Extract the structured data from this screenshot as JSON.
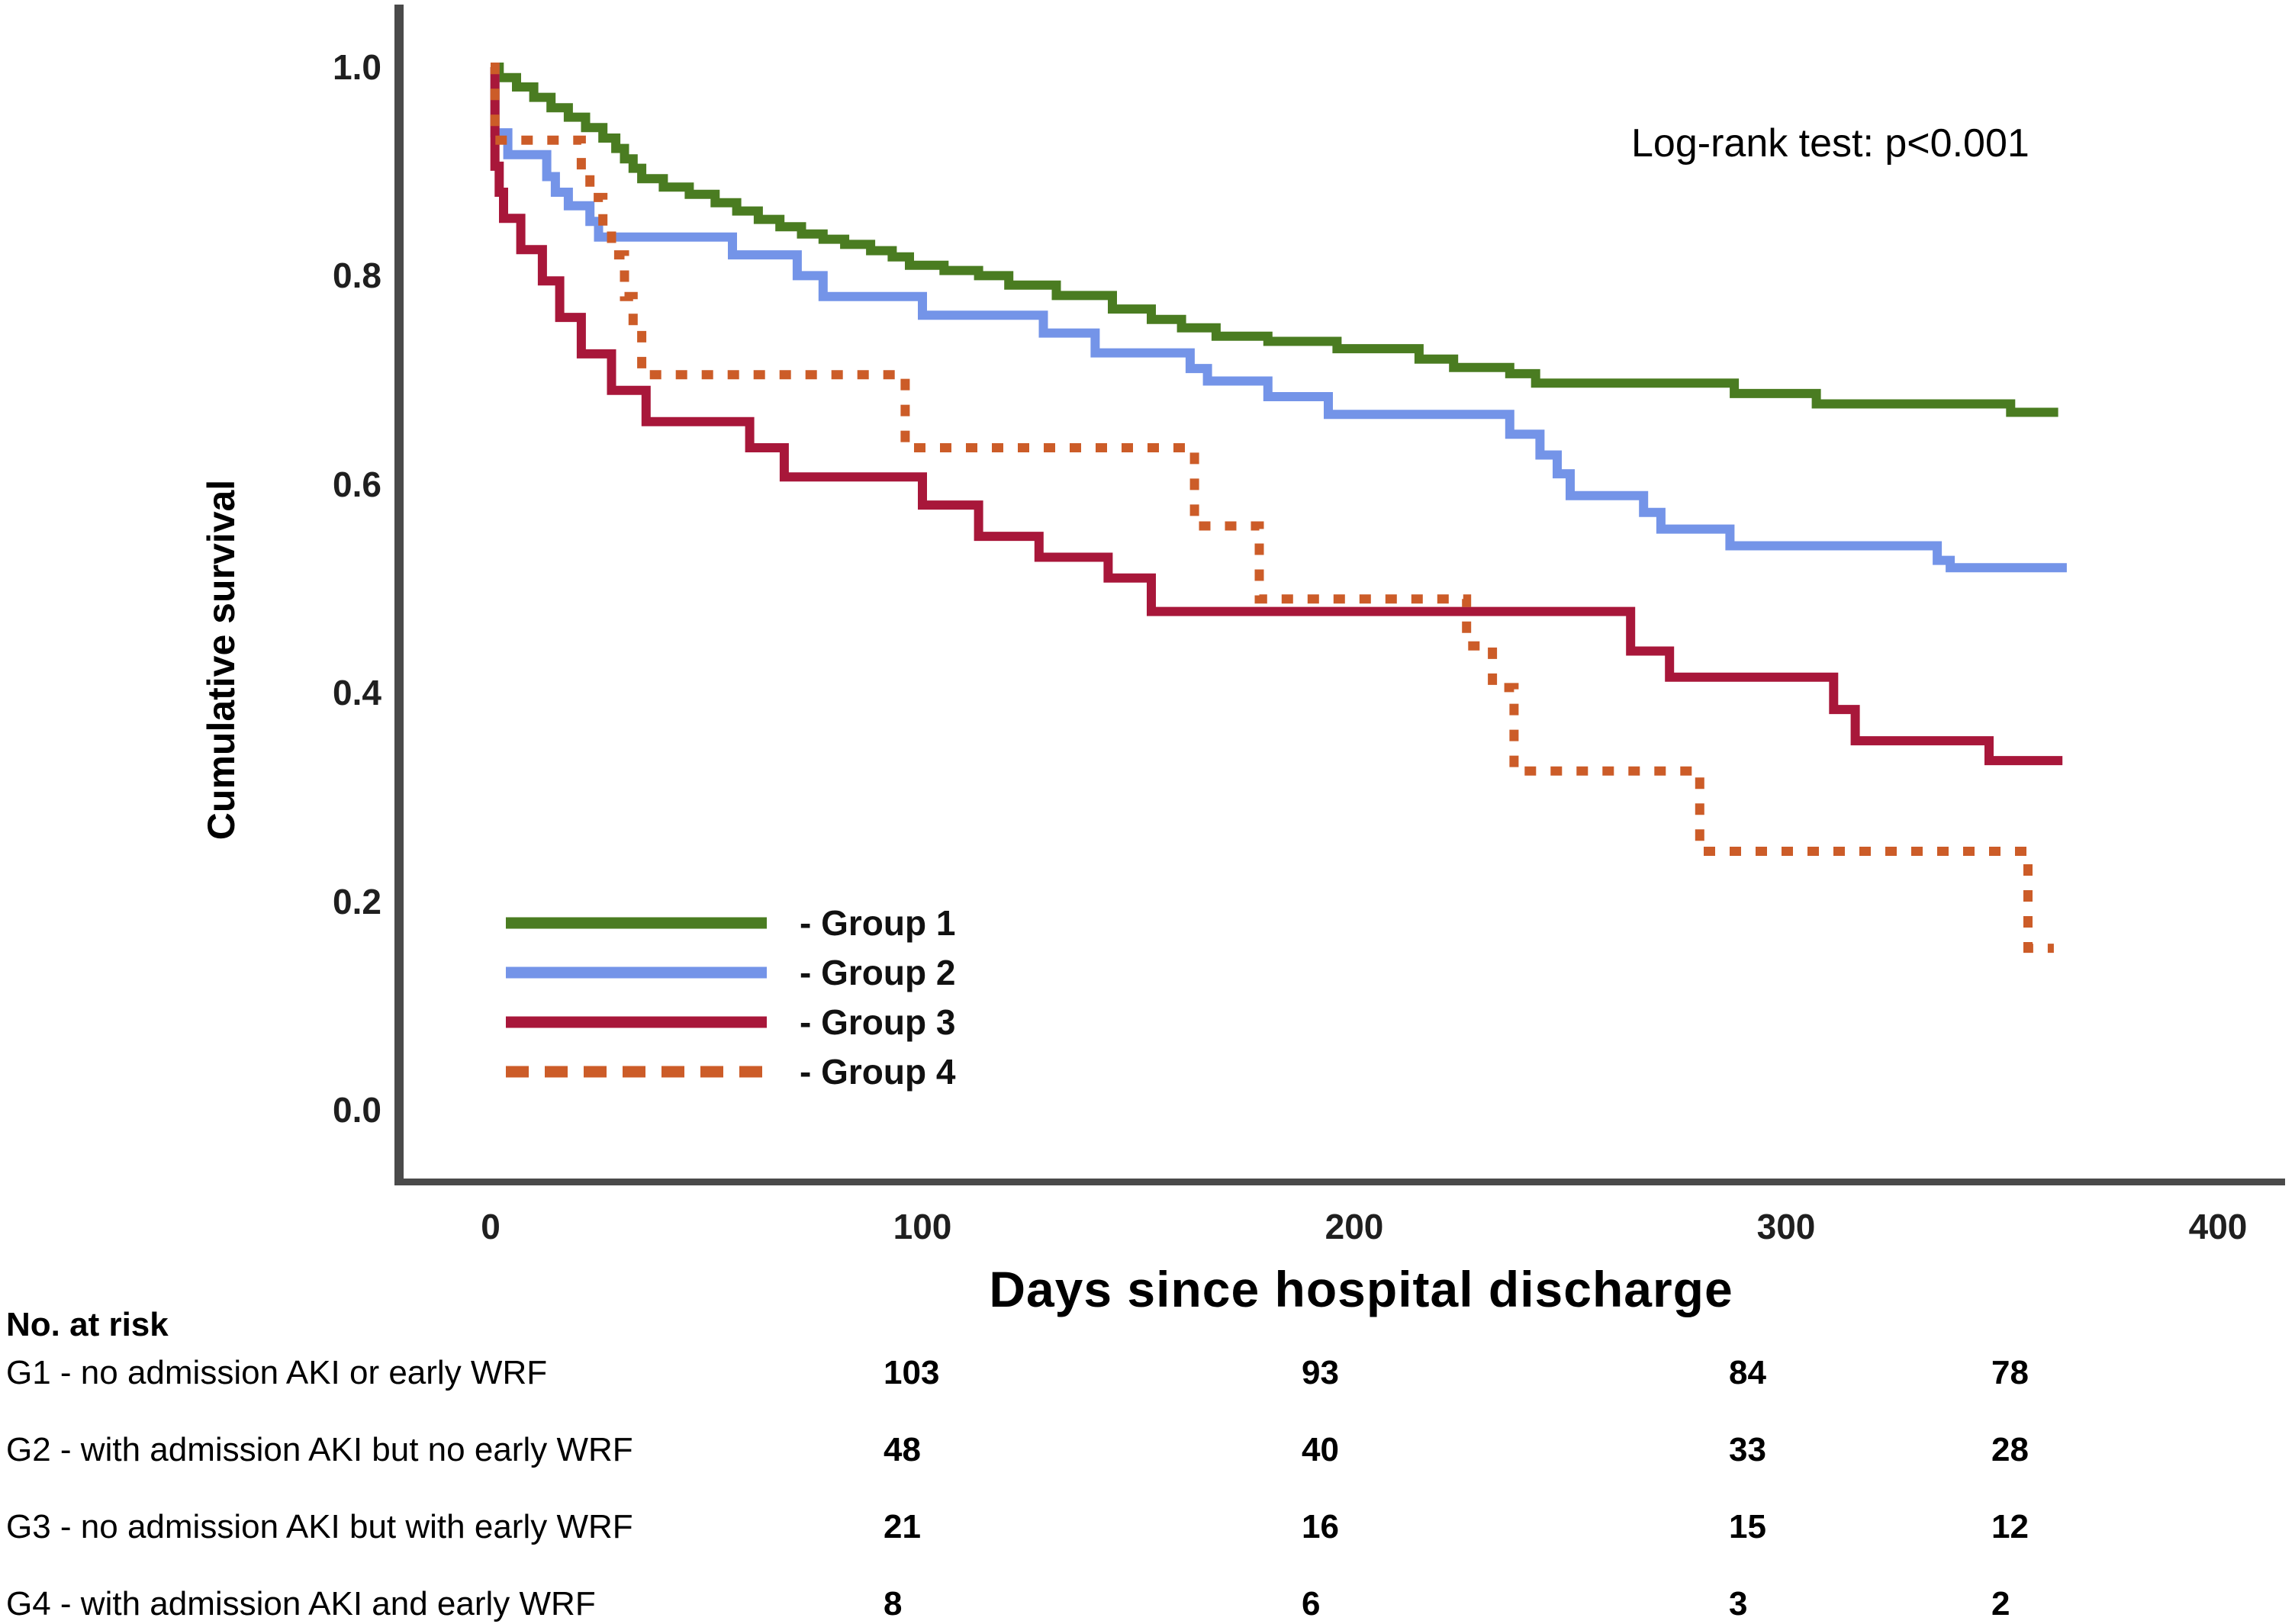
{
  "chart_data": {
    "type": "line",
    "subtype": "kaplan-meier-step",
    "title": "",
    "xlabel": "Days since hospital discharge",
    "ylabel": "Cumulative survival",
    "annotation": "Log-rank test: p<0.001",
    "xlim": [
      0,
      415
    ],
    "ylim": [
      0.0,
      1.0
    ],
    "grid": false,
    "legend_position": "inside lower-left",
    "xticks": [
      {
        "label": "0",
        "value": 0
      },
      {
        "label": "100",
        "value": 100
      },
      {
        "label": "200",
        "value": 200
      },
      {
        "label": "300",
        "value": 300
      },
      {
        "label": "400",
        "value": 400
      }
    ],
    "yticks": [
      {
        "label": "1.0",
        "value": 1.0
      },
      {
        "label": "0.8",
        "value": 0.8
      },
      {
        "label": "0.6",
        "value": 0.6
      },
      {
        "label": "0.4",
        "value": 0.4
      },
      {
        "label": "0.2",
        "value": 0.2
      },
      {
        "label": "0.0",
        "value": 0.0
      }
    ],
    "series": [
      {
        "name": "Group 1",
        "legend_label": "- Group 1",
        "color": "#4a7c21",
        "dashed": false,
        "steps": [
          [
            0,
            1.0
          ],
          [
            2,
            0.99
          ],
          [
            6,
            0.981
          ],
          [
            10,
            0.971
          ],
          [
            14,
            0.961
          ],
          [
            18,
            0.952
          ],
          [
            22,
            0.942
          ],
          [
            26,
            0.932
          ],
          [
            29,
            0.922
          ],
          [
            31,
            0.912
          ],
          [
            33,
            0.903
          ],
          [
            35,
            0.893
          ],
          [
            40,
            0.885
          ],
          [
            46,
            0.878
          ],
          [
            52,
            0.87
          ],
          [
            57,
            0.862
          ],
          [
            62,
            0.854
          ],
          [
            67,
            0.847
          ],
          [
            72,
            0.84
          ],
          [
            77,
            0.835
          ],
          [
            82,
            0.83
          ],
          [
            88,
            0.824
          ],
          [
            93,
            0.818
          ],
          [
            97,
            0.81
          ],
          [
            105,
            0.805
          ],
          [
            113,
            0.8
          ],
          [
            120,
            0.791
          ],
          [
            131,
            0.781
          ],
          [
            144,
            0.768
          ],
          [
            153,
            0.758
          ],
          [
            160,
            0.75
          ],
          [
            168,
            0.742
          ],
          [
            180,
            0.737
          ],
          [
            196,
            0.73
          ],
          [
            215,
            0.72
          ],
          [
            223,
            0.712
          ],
          [
            236,
            0.706
          ],
          [
            242,
            0.697
          ],
          [
            288,
            0.687
          ],
          [
            307,
            0.677
          ],
          [
            352,
            0.669
          ],
          [
            363,
            0.669
          ]
        ]
      },
      {
        "name": "Group 2",
        "legend_label": "- Group 2",
        "color": "#7494e8",
        "dashed": false,
        "steps": [
          [
            0,
            1.0
          ],
          [
            1,
            0.937
          ],
          [
            4,
            0.916
          ],
          [
            13,
            0.895
          ],
          [
            15,
            0.88
          ],
          [
            18,
            0.867
          ],
          [
            23,
            0.852
          ],
          [
            25,
            0.837
          ],
          [
            56,
            0.82
          ],
          [
            71,
            0.8
          ],
          [
            77,
            0.78
          ],
          [
            100,
            0.762
          ],
          [
            128,
            0.745
          ],
          [
            140,
            0.726
          ],
          [
            162,
            0.711
          ],
          [
            166,
            0.699
          ],
          [
            180,
            0.684
          ],
          [
            194,
            0.667
          ],
          [
            236,
            0.648
          ],
          [
            243,
            0.628
          ],
          [
            247,
            0.61
          ],
          [
            250,
            0.589
          ],
          [
            267,
            0.573
          ],
          [
            271,
            0.557
          ],
          [
            287,
            0.541
          ],
          [
            335,
            0.527
          ],
          [
            338,
            0.52
          ],
          [
            365,
            0.52
          ]
        ]
      },
      {
        "name": "Group 3",
        "legend_label": "- Group 3",
        "color": "#a8173a",
        "dashed": false,
        "steps": [
          [
            0,
            1.0
          ],
          [
            1,
            0.905
          ],
          [
            2,
            0.88
          ],
          [
            3,
            0.855
          ],
          [
            7,
            0.825
          ],
          [
            12,
            0.795
          ],
          [
            16,
            0.76
          ],
          [
            21,
            0.725
          ],
          [
            28,
            0.69
          ],
          [
            36,
            0.66
          ],
          [
            60,
            0.635
          ],
          [
            68,
            0.607
          ],
          [
            100,
            0.58
          ],
          [
            113,
            0.55
          ],
          [
            127,
            0.53
          ],
          [
            143,
            0.51
          ],
          [
            153,
            0.478
          ],
          [
            264,
            0.44
          ],
          [
            273,
            0.415
          ],
          [
            311,
            0.384
          ],
          [
            316,
            0.354
          ],
          [
            347,
            0.335
          ],
          [
            364,
            0.335
          ]
        ]
      },
      {
        "name": "Group 4",
        "legend_label": "- Group 4",
        "color": "#cc5c28",
        "dashed": true,
        "steps": [
          [
            0,
            1.0
          ],
          [
            1,
            0.93
          ],
          [
            21,
            0.9
          ],
          [
            23,
            0.875
          ],
          [
            26,
            0.845
          ],
          [
            28,
            0.82
          ],
          [
            31,
            0.78
          ],
          [
            33,
            0.75
          ],
          [
            35,
            0.705
          ],
          [
            96,
            0.635
          ],
          [
            163,
            0.56
          ],
          [
            178,
            0.49
          ],
          [
            226,
            0.445
          ],
          [
            232,
            0.405
          ],
          [
            237,
            0.325
          ],
          [
            280,
            0.248
          ],
          [
            356,
            0.155
          ],
          [
            362,
            0.155
          ]
        ]
      }
    ]
  },
  "risk_table": {
    "title": "No. at risk",
    "rows": [
      {
        "label": "G1 - no admission AKI or early WRF",
        "values": [
          "103",
          "93",
          "84",
          "78"
        ]
      },
      {
        "label": "G2 - with admission AKI but no early WRF",
        "values": [
          "48",
          "40",
          "33",
          "28"
        ]
      },
      {
        "label": "G3 - no admission AKI but with early WRF",
        "values": [
          "21",
          "16",
          "15",
          "12"
        ]
      },
      {
        "label": "G4 - with admission AKI and early WRF",
        "values": [
          "8",
          "6",
          "3",
          "2"
        ]
      }
    ]
  },
  "style": {
    "axis_color": "#4a4a4a",
    "tick_text_color": "#1f1f1f"
  }
}
